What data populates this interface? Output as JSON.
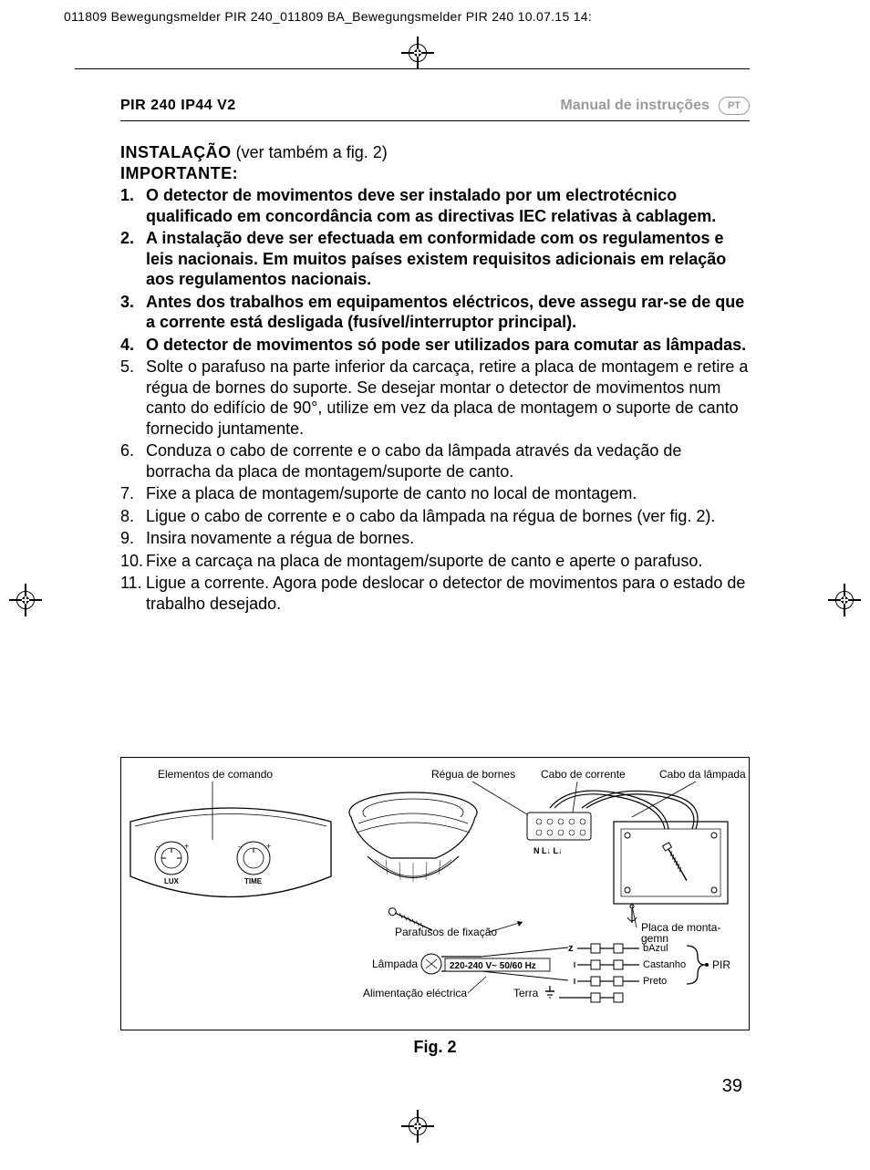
{
  "cropHeader": "011809 Bewegungsmelder PIR 240_011809 BA_Bewegungsmelder PIR 240  10.07.15  14:",
  "header": {
    "left": "PIR 240 IP44 V2",
    "right": "Manual de instruções",
    "lang": "PT"
  },
  "install": {
    "titleBold": "INSTALAÇÃO",
    "titleRest": " (ver também a fig. 2)",
    "important": "IMPORTANTE:",
    "items": [
      {
        "n": "1.",
        "bold": true,
        "text": "O detector de movimentos deve ser instalado por um electrotécnico qualificado em concordância com as directivas IEC relativas à cablagem."
      },
      {
        "n": "2.",
        "bold": true,
        "text": "A instalação deve ser efectuada em conformidade com os regulamentos e leis nacionais. Em muitos países existem requisitos adicionais em relação aos regulamentos nacionais."
      },
      {
        "n": "3.",
        "bold": true,
        "text": "Antes dos trabalhos em equipamentos eléctricos, deve assegu rar-se de que a corrente está desligada (fusível/interruptor principal)."
      },
      {
        "n": "4.",
        "bold": true,
        "text": "O detector de movimentos só pode ser utilizados para comutar as lâmpadas."
      },
      {
        "n": "5.",
        "bold": false,
        "text": "Solte o parafuso na parte inferior da carcaça, retire a placa de montagem e retire a régua de bornes do suporte. Se desejar montar o detector de movimentos num canto do edifício de 90°, utilize em vez da placa de montagem o suporte de canto fornecido juntamente."
      },
      {
        "n": "6.",
        "bold": false,
        "text": "Conduza o cabo de corrente e o cabo da lâmpada através da vedação de borracha da placa de montagem/suporte de canto."
      },
      {
        "n": "7.",
        "bold": false,
        "text": "Fixe a placa de montagem/suporte de canto no local de montagem."
      },
      {
        "n": "8.",
        "bold": false,
        "text": "Ligue o cabo de corrente e o cabo da lâmpada na régua de bornes (ver fig. 2)."
      },
      {
        "n": "9.",
        "bold": false,
        "text": "Insira novamente a régua de bornes."
      },
      {
        "n": "10.",
        "bold": false,
        "text": "Fixe a carcaça na placa de montagem/suporte de canto e aperte o parafuso."
      },
      {
        "n": "11.",
        "bold": false,
        "text": "Ligue a corrente. Agora pode deslocar o detector de movimentos para o estado de trabalho desejado."
      }
    ]
  },
  "figure": {
    "caption": "Fig. 2",
    "labels": {
      "elementos": "Elementos de comando",
      "regua": "Régua de bornes",
      "caboCorrente": "Cabo de corrente",
      "caboLampada": "Cabo da lâmpada",
      "parafusos": "Parafusos de fixação",
      "placa": "Placa de monta-gemn",
      "lampada": "Lâmpada",
      "voltage": "220-240 V~  50/60 Hz",
      "alimentacao": "Alimentação eléctrica",
      "terra": "Terra",
      "azul": "bAzul",
      "castanho": "Castanho",
      "preto": "Preto",
      "pir": "PIR",
      "lux": "LUX",
      "time": "TIME",
      "terminals": "N L↓ L↓"
    }
  },
  "pageNumber": "39",
  "colors": {
    "text": "#000000",
    "muted": "#9a9a9a",
    "background": "#ffffff"
  }
}
